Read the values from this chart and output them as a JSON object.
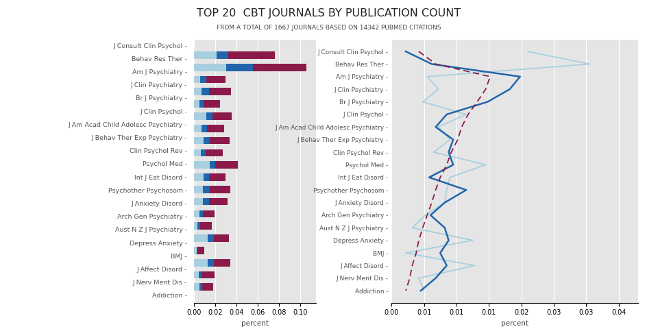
{
  "title": "TOP 20  CBT JOURNALS BY PUBLICATION COUNT",
  "subtitle": "FROM A TOTAL OF 1667 JOURNALS BASED ON 14342 PUBMED CITATIONS",
  "journals": [
    "J Consult Clin Psychol",
    "Behav Res Ther",
    "Am J Psychiatry",
    "J Clin Psychiatry",
    "Br J Psychiatry",
    "J Clin Psychol",
    "J Am Acad Child Adolesc Psychiatry",
    "J Behav Ther Exp Psychiatry",
    "Clin Psychol Rev",
    "Psychol Med",
    "Int J Eat Disord",
    "Psychother Psychosom",
    "J Anxiety Disord",
    "Arch Gen Psychiatry",
    "Aust N Z J Psychiatry",
    "Depress Anxiety",
    "BMJ",
    "J Affect Disord",
    "J Nerv Ment Dis",
    "Addiction"
  ],
  "bar_2010": [
    0.021,
    0.0305,
    0.0055,
    0.0072,
    0.0048,
    0.0115,
    0.0072,
    0.009,
    0.0065,
    0.0145,
    0.009,
    0.0085,
    0.0082,
    0.0052,
    0.0032,
    0.0125,
    0.0022,
    0.0128,
    0.0042,
    0.005
  ],
  "bar_2011": [
    0.0115,
    0.0248,
    0.0058,
    0.0068,
    0.004,
    0.006,
    0.0052,
    0.0055,
    0.0042,
    0.0052,
    0.0052,
    0.0062,
    0.0058,
    0.0028,
    0.0022,
    0.006,
    0.0008,
    0.0058,
    0.0028,
    0.0025
  ],
  "bar_total": [
    0.076,
    0.106,
    0.0295,
    0.035,
    0.0248,
    0.0355,
    0.0282,
    0.0335,
    0.0272,
    0.0415,
    0.0295,
    0.034,
    0.0315,
    0.0195,
    0.0165,
    0.033,
    0.0095,
    0.034,
    0.0192,
    0.018
  ],
  "line_2010": [
    0.021,
    0.0305,
    0.0055,
    0.0072,
    0.0048,
    0.0115,
    0.0072,
    0.009,
    0.0065,
    0.0145,
    0.009,
    0.0085,
    0.0082,
    0.0052,
    0.0032,
    0.0125,
    0.0022,
    0.0128,
    0.0042,
    0.005
  ],
  "line_2011": [
    0.0022,
    0.0062,
    0.0198,
    0.0182,
    0.0148,
    0.0085,
    0.0068,
    0.0095,
    0.0088,
    0.0095,
    0.0058,
    0.0115,
    0.0082,
    0.006,
    0.0082,
    0.0088,
    0.0075,
    0.0085,
    0.0068,
    0.0045
  ],
  "line_total": [
    0.0042,
    0.0068,
    0.0152,
    0.0145,
    0.0132,
    0.0118,
    0.0108,
    0.0102,
    0.0092,
    0.0085,
    0.0075,
    0.0068,
    0.0062,
    0.0055,
    0.0048,
    0.0042,
    0.0038,
    0.0032,
    0.0028,
    0.0022
  ],
  "color_2010": "#a8cfe0",
  "color_2011": "#2166ac",
  "color_total": "#8b1a4a",
  "bg_color": "#e5e5e5",
  "grid_color": "#ffffff",
  "text_color": "#555555"
}
